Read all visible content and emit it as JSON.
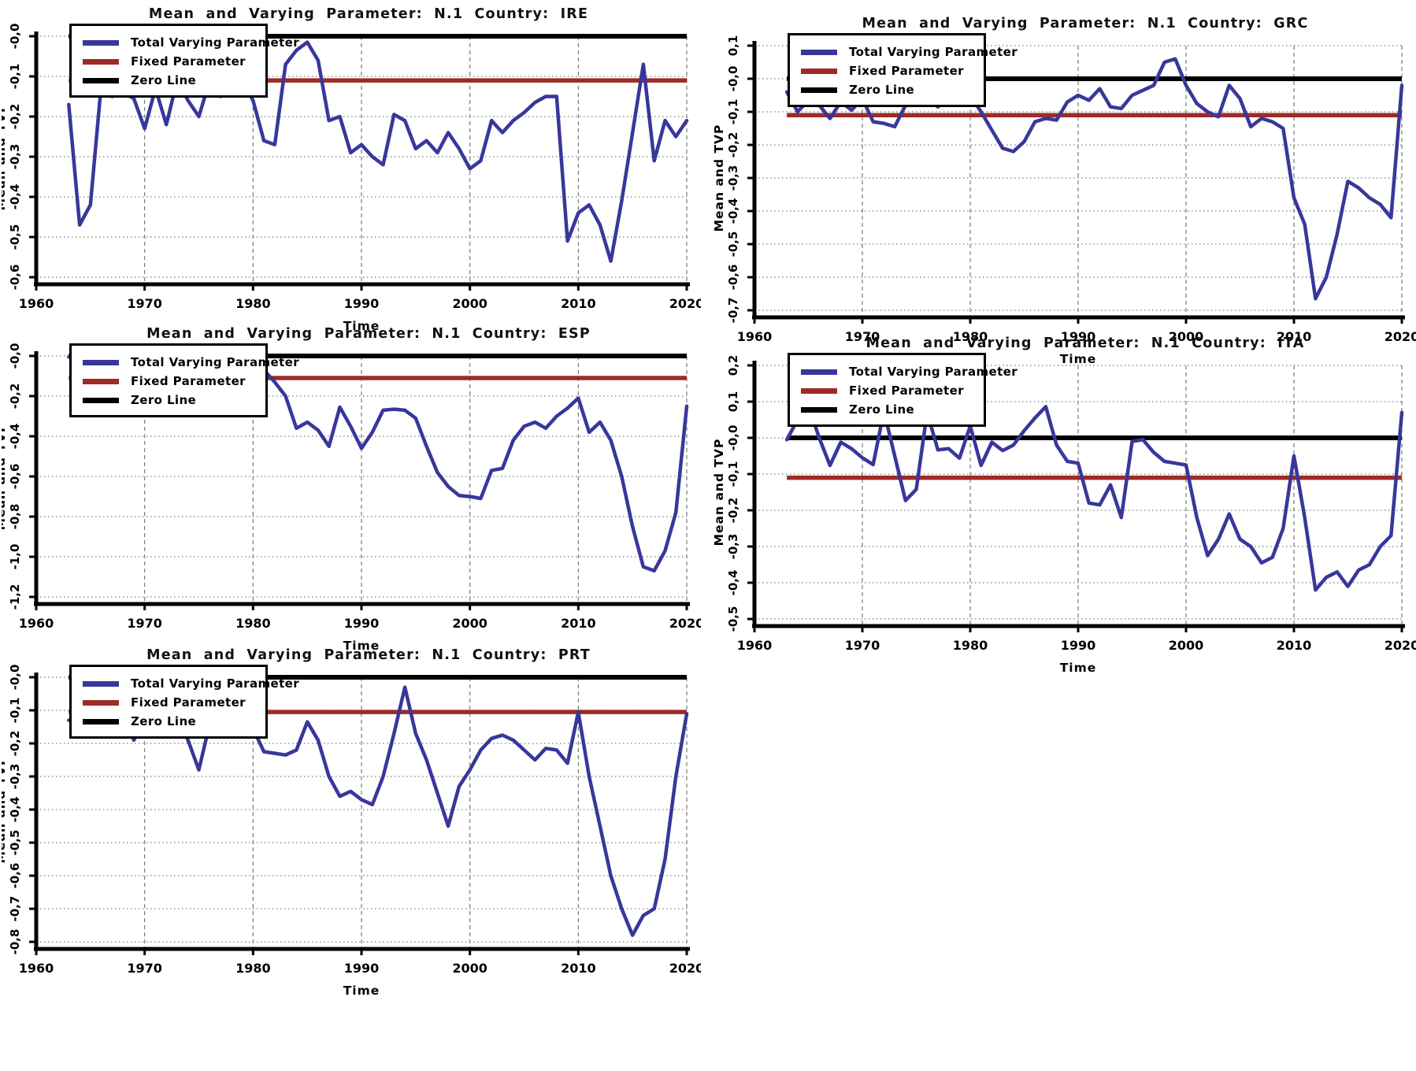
{
  "page": {
    "background": "#ffffff"
  },
  "colors": {
    "series_blue": "#37379B",
    "fixed_red": "#9E2B26",
    "zero_black": "#000000",
    "grid_gray": "#7a7a7a",
    "axis_black": "#000000"
  },
  "legend": {
    "items": [
      {
        "label": "Total Varying Parameter",
        "color_key": "series_blue"
      },
      {
        "label": "Fixed Parameter",
        "color_key": "fixed_red"
      },
      {
        "label": "Zero Line",
        "color_key": "zero_black"
      }
    ]
  },
  "axes": {
    "x_label": "Time",
    "y_label": "Mean and TVP",
    "x_ticks": [
      1960,
      1970,
      1980,
      1990,
      2000,
      2010,
      2020
    ],
    "x_range": [
      1960,
      2020
    ]
  },
  "chart_data": [
    {
      "id": "ire",
      "type": "line",
      "country": "IRE",
      "title": "Mean and Varying Parameter: N.1 Country: IRE",
      "xlabel": "Time",
      "ylabel": "Mean and TVP",
      "ylim": [
        -0.6,
        0.0
      ],
      "ytick_step": 0.1,
      "ydecimals": 1,
      "start_year": 1963,
      "zero_value": 0.0,
      "fixed_value": -0.11,
      "tvp_values": [
        -0.17,
        -0.47,
        -0.42,
        -0.12,
        -0.15,
        -0.14,
        -0.155,
        -0.23,
        -0.13,
        -0.22,
        -0.11,
        -0.16,
        -0.2,
        -0.11,
        -0.15,
        -0.12,
        -0.11,
        -0.16,
        -0.26,
        -0.27,
        -0.07,
        -0.035,
        -0.015,
        -0.06,
        -0.21,
        -0.2,
        -0.29,
        -0.27,
        -0.3,
        -0.32,
        -0.195,
        -0.21,
        -0.28,
        -0.26,
        -0.29,
        -0.24,
        -0.28,
        -0.33,
        -0.31,
        -0.21,
        -0.24,
        -0.21,
        -0.19,
        -0.165,
        -0.15,
        -0.15,
        -0.51,
        -0.44,
        -0.42,
        -0.47,
        -0.56,
        -0.41,
        -0.24,
        -0.07,
        -0.31,
        -0.21,
        -0.25,
        -0.21
      ]
    },
    {
      "id": "grc",
      "type": "line",
      "country": "GRC",
      "title": "Mean and Varying Parameter: N.1 Country: GRC",
      "xlabel": "Time",
      "ylabel": "Mean and TVP",
      "ylim": [
        -0.7,
        0.1
      ],
      "ytick_step": 0.1,
      "ydecimals": 1,
      "start_year": 1963,
      "zero_value": 0.0,
      "fixed_value": -0.11,
      "tvp_values": [
        -0.04,
        -0.1,
        -0.065,
        -0.08,
        -0.12,
        -0.07,
        -0.095,
        -0.06,
        -0.13,
        -0.135,
        -0.145,
        -0.08,
        -0.06,
        -0.055,
        -0.085,
        -0.055,
        -0.04,
        -0.05,
        -0.1,
        -0.155,
        -0.21,
        -0.22,
        -0.19,
        -0.13,
        -0.12,
        -0.125,
        -0.07,
        -0.05,
        -0.065,
        -0.03,
        -0.085,
        -0.09,
        -0.05,
        -0.035,
        -0.02,
        0.05,
        0.06,
        -0.02,
        -0.075,
        -0.1,
        -0.115,
        -0.02,
        -0.06,
        -0.145,
        -0.12,
        -0.13,
        -0.15,
        -0.36,
        -0.44,
        -0.665,
        -0.6,
        -0.47,
        -0.31,
        -0.33,
        -0.36,
        -0.38,
        -0.42,
        -0.02
      ]
    },
    {
      "id": "esp",
      "type": "line",
      "country": "ESP",
      "title": "Mean and Varying Parameter: N.1 Country: ESP",
      "xlabel": "Time",
      "ylabel": "Mean and TVP",
      "ylim": [
        -1.2,
        0.0
      ],
      "ytick_step": 0.2,
      "ydecimals": 1,
      "start_year": 1963,
      "zero_value": 0.0,
      "fixed_value": -0.11,
      "tvp_values": [
        -0.005,
        -0.006,
        -0.007,
        -0.008,
        -0.009,
        -0.01,
        -0.01,
        -0.011,
        -0.012,
        -0.013,
        -0.014,
        -0.015,
        -0.016,
        -0.017,
        -0.018,
        -0.02,
        -0.025,
        -0.035,
        -0.07,
        -0.13,
        -0.2,
        -0.36,
        -0.33,
        -0.37,
        -0.45,
        -0.255,
        -0.35,
        -0.46,
        -0.38,
        -0.27,
        -0.265,
        -0.27,
        -0.31,
        -0.45,
        -0.58,
        -0.65,
        -0.695,
        -0.7,
        -0.71,
        -0.57,
        -0.56,
        -0.42,
        -0.35,
        -0.33,
        -0.36,
        -0.3,
        -0.26,
        -0.21,
        -0.38,
        -0.33,
        -0.42,
        -0.6,
        -0.85,
        -1.05,
        -1.07,
        -0.97,
        -0.78,
        -0.25
      ]
    },
    {
      "id": "ita",
      "type": "line",
      "country": "ITA",
      "title": "Mean and Varying Parameter: N.1 Country: ITA",
      "xlabel": "Time",
      "ylabel": "Mean and TVP",
      "ylim": [
        -0.5,
        0.2
      ],
      "ytick_step": 0.1,
      "ydecimals": 1,
      "start_year": 1963,
      "zero_value": 0.0,
      "fixed_value": -0.11,
      "tvp_values": [
        -0.005,
        0.05,
        0.09,
        0.0,
        -0.076,
        -0.012,
        -0.03,
        -0.055,
        -0.074,
        0.074,
        -0.05,
        -0.173,
        -0.142,
        0.07,
        -0.033,
        -0.03,
        -0.056,
        0.033,
        -0.076,
        -0.012,
        -0.035,
        -0.02,
        0.02,
        0.055,
        0.086,
        -0.02,
        -0.065,
        -0.07,
        -0.18,
        -0.185,
        -0.13,
        -0.22,
        -0.01,
        -0.005,
        -0.04,
        -0.065,
        -0.07,
        -0.075,
        -0.22,
        -0.325,
        -0.28,
        -0.21,
        -0.28,
        -0.3,
        -0.345,
        -0.33,
        -0.25,
        -0.05,
        -0.22,
        -0.42,
        -0.385,
        -0.37,
        -0.41,
        -0.365,
        -0.35,
        -0.3,
        -0.27,
        0.07
      ]
    },
    {
      "id": "prt",
      "type": "line",
      "country": "PRT",
      "title": "Mean and Varying Parameter: N.1 Country: PRT",
      "xlabel": "Time",
      "ylabel": "Mean and TVP",
      "ylim": [
        -0.8,
        0.0
      ],
      "ytick_step": 0.1,
      "ydecimals": 1,
      "start_year": 1963,
      "zero_value": 0.0,
      "fixed_value": -0.105,
      "tvp_values": [
        -0.13,
        -0.12,
        -0.15,
        -0.17,
        -0.15,
        -0.12,
        -0.19,
        -0.135,
        -0.15,
        -0.14,
        -0.12,
        -0.19,
        -0.28,
        -0.14,
        -0.125,
        -0.12,
        -0.13,
        -0.155,
        -0.225,
        -0.23,
        -0.235,
        -0.22,
        -0.135,
        -0.19,
        -0.3,
        -0.36,
        -0.345,
        -0.37,
        -0.385,
        -0.3,
        -0.17,
        -0.03,
        -0.17,
        -0.25,
        -0.35,
        -0.45,
        -0.33,
        -0.28,
        -0.22,
        -0.185,
        -0.175,
        -0.19,
        -0.22,
        -0.25,
        -0.215,
        -0.22,
        -0.26,
        -0.105,
        -0.3,
        -0.45,
        -0.6,
        -0.7,
        -0.78,
        -0.72,
        -0.7,
        -0.55,
        -0.3,
        -0.11
      ]
    }
  ]
}
